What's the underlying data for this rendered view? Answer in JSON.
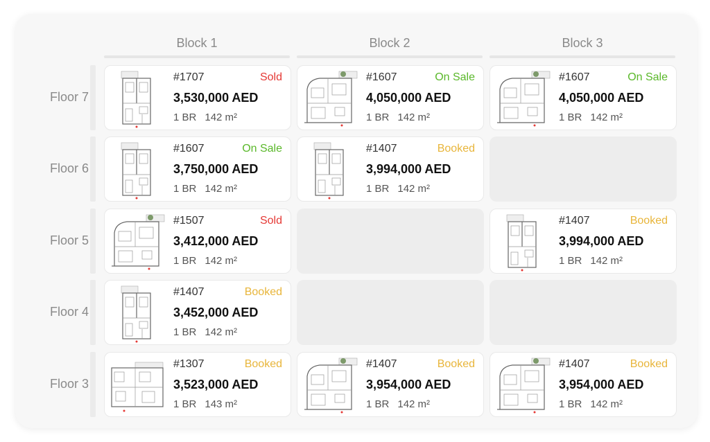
{
  "blocks": [
    "Block 1",
    "Block 2",
    "Block 3"
  ],
  "floors": [
    "Floor 7",
    "Floor 6",
    "Floor 5",
    "Floor 4",
    "Floor 3"
  ],
  "status_colors": {
    "Sold": "#e53935",
    "On Sale": "#5ab82a",
    "Booked": "#e8b53a"
  },
  "grid": [
    [
      {
        "unit": "#1707",
        "status": "Sold",
        "price": "3,530,000 AED",
        "br": "1 BR",
        "area": "142 m²",
        "plan": "tall"
      },
      {
        "unit": "#1607",
        "status": "On Sale",
        "price": "4,050,000 AED",
        "br": "1 BR",
        "area": "142 m²",
        "plan": "wide"
      },
      {
        "unit": "#1607",
        "status": "On Sale",
        "price": "4,050,000 AED",
        "br": "1 BR",
        "area": "142 m²",
        "plan": "wide"
      }
    ],
    [
      {
        "unit": "#1607",
        "status": "On Sale",
        "price": "3,750,000 AED",
        "br": "1 BR",
        "area": "142 m²",
        "plan": "tall"
      },
      {
        "unit": "#1407",
        "status": "Booked",
        "price": "3,994,000 AED",
        "br": "1 BR",
        "area": "142 m²",
        "plan": "tall"
      },
      null
    ],
    [
      {
        "unit": "#1507",
        "status": "Sold",
        "price": "3,412,000 AED",
        "br": "1 BR",
        "area": "142 m²",
        "plan": "wide"
      },
      null,
      {
        "unit": "#1407",
        "status": "Booked",
        "price": "3,994,000 AED",
        "br": "1 BR",
        "area": "142 m²",
        "plan": "tall"
      }
    ],
    [
      {
        "unit": "#1407",
        "status": "Booked",
        "price": "3,452,000 AED",
        "br": "1 BR",
        "area": "142 m²",
        "plan": "tall"
      },
      null,
      null
    ],
    [
      {
        "unit": "#1307",
        "status": "Booked",
        "price": "3,523,000 AED",
        "br": "1 BR",
        "area": "143 m²",
        "plan": "flat"
      },
      {
        "unit": "#1407",
        "status": "Booked",
        "price": "3,954,000 AED",
        "br": "1 BR",
        "area": "142 m²",
        "plan": "wide"
      },
      {
        "unit": "#1407",
        "status": "Booked",
        "price": "3,954,000 AED",
        "br": "1 BR",
        "area": "142 m²",
        "plan": "wide"
      }
    ]
  ]
}
